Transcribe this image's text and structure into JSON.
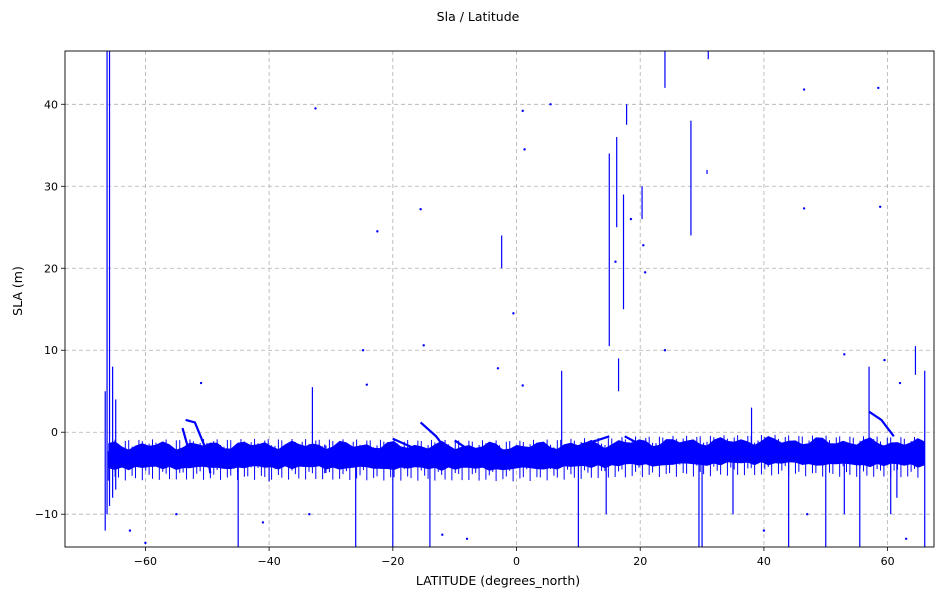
{
  "chart_data": {
    "type": "scatter",
    "title": "Sla / Latitude",
    "xlabel": "LATITUDE (degrees_north)",
    "ylabel": "SLA (m)",
    "xlim": [
      -73.0,
      67.5
    ],
    "ylim": [
      -14.0,
      46.5
    ],
    "xticks": [
      -60,
      -40,
      -20,
      0,
      20,
      40,
      60
    ],
    "yticks": [
      -10,
      0,
      10,
      20,
      30,
      40
    ],
    "grid": true,
    "color": "#0000ff",
    "band": {
      "x_range": [
        -66.0,
        66.0
      ],
      "center": [
        [
          -66,
          -2.9
        ],
        [
          -40,
          -2.8
        ],
        [
          0,
          -3.0
        ],
        [
          20,
          -2.5
        ],
        [
          40,
          -2.3
        ],
        [
          66,
          -2.6
        ]
      ],
      "halfwidth": 1.3
    },
    "segments": [
      {
        "x": -66.2,
        "y": [
          -10.0,
          46.5
        ]
      },
      {
        "x": -65.8,
        "y": [
          -9.0,
          46.5
        ]
      },
      {
        "x": -66.5,
        "y": [
          -12.0,
          5.0
        ]
      },
      {
        "x": -65.3,
        "y": [
          -8.0,
          8.0
        ]
      },
      {
        "x": -64.8,
        "y": [
          -7.0,
          4.0
        ]
      },
      {
        "x": -45.0,
        "y": [
          -14.0,
          -3.0
        ]
      },
      {
        "x": -40.0,
        "y": [
          -6.0,
          -2.0
        ]
      },
      {
        "x": -33.0,
        "y": [
          -2.0,
          5.5
        ]
      },
      {
        "x": -31.0,
        "y": [
          -5.0,
          -1.5
        ]
      },
      {
        "x": -26.0,
        "y": [
          -14.0,
          -3.0
        ]
      },
      {
        "x": -20.0,
        "y": [
          -14.0,
          -3.0
        ]
      },
      {
        "x": -14.0,
        "y": [
          -14.0,
          -3.0
        ]
      },
      {
        "x": -2.4,
        "y": [
          20.0,
          24.0
        ]
      },
      {
        "x": 7.3,
        "y": [
          -2.0,
          7.5
        ]
      },
      {
        "x": 10.0,
        "y": [
          -14.0,
          -3.0
        ]
      },
      {
        "x": 14.5,
        "y": [
          -10.0,
          -3.0
        ]
      },
      {
        "x": 15.0,
        "y": [
          10.5,
          34.0
        ]
      },
      {
        "x": 16.2,
        "y": [
          25.0,
          36.0
        ]
      },
      {
        "x": 16.5,
        "y": [
          5.0,
          9.0
        ]
      },
      {
        "x": 17.3,
        "y": [
          15.0,
          29.0
        ]
      },
      {
        "x": 17.8,
        "y": [
          37.5,
          40.0
        ]
      },
      {
        "x": 20.3,
        "y": [
          26.0,
          30.0
        ]
      },
      {
        "x": 24.0,
        "y": [
          42.0,
          46.5
        ]
      },
      {
        "x": 28.2,
        "y": [
          24.0,
          38.0
        ]
      },
      {
        "x": 29.5,
        "y": [
          -14.0,
          -3.0
        ]
      },
      {
        "x": 30.0,
        "y": [
          -14.0,
          -3.0
        ]
      },
      {
        "x": 30.8,
        "y": [
          31.5,
          32.0
        ]
      },
      {
        "x": 31.0,
        "y": [
          45.5,
          46.5
        ]
      },
      {
        "x": 35.0,
        "y": [
          -10.0,
          -3.0
        ]
      },
      {
        "x": 38.0,
        "y": [
          -2.0,
          3.0
        ]
      },
      {
        "x": 44.0,
        "y": [
          -14.0,
          -3.0
        ]
      },
      {
        "x": 50.0,
        "y": [
          -14.0,
          -3.0
        ]
      },
      {
        "x": 53.0,
        "y": [
          -10.0,
          -3.0
        ]
      },
      {
        "x": 55.5,
        "y": [
          -14.0,
          -3.0
        ]
      },
      {
        "x": 57.0,
        "y": [
          -2.0,
          8.0
        ]
      },
      {
        "x": 60.5,
        "y": [
          -10.0,
          -3.0
        ]
      },
      {
        "x": 61.5,
        "y": [
          -8.0,
          -3.0
        ]
      },
      {
        "x": 64.5,
        "y": [
          7.0,
          10.5
        ]
      },
      {
        "x": 66.0,
        "y": [
          -14.0,
          7.5
        ]
      }
    ],
    "points": [
      [
        -32.5,
        39.5
      ],
      [
        -22.5,
        24.5
      ],
      [
        -24.8,
        10.0
      ],
      [
        -24.2,
        5.8
      ],
      [
        -15.5,
        27.2
      ],
      [
        -15.0,
        10.6
      ],
      [
        -51.0,
        6.0
      ],
      [
        -3.0,
        7.8
      ],
      [
        -0.5,
        14.5
      ],
      [
        1.0,
        39.2
      ],
      [
        1.3,
        34.5
      ],
      [
        1.0,
        5.7
      ],
      [
        5.5,
        40.0
      ],
      [
        16.0,
        20.8
      ],
      [
        18.5,
        26.0
      ],
      [
        20.5,
        22.8
      ],
      [
        20.8,
        19.5
      ],
      [
        24.0,
        10.0
      ],
      [
        46.5,
        41.8
      ],
      [
        46.5,
        27.3
      ],
      [
        58.5,
        42.0
      ],
      [
        58.8,
        27.5
      ],
      [
        59.5,
        8.8
      ],
      [
        62.0,
        6.0
      ],
      [
        53.0,
        9.5
      ],
      [
        -41.0,
        -11.0
      ],
      [
        -33.5,
        -10.0
      ],
      [
        -12.0,
        -12.5
      ],
      [
        -8.0,
        -13.0
      ],
      [
        -55.0,
        -10.0
      ],
      [
        -60.0,
        -13.5
      ],
      [
        -62.5,
        -12.0
      ],
      [
        40.0,
        -12.0
      ],
      [
        47.0,
        -10.0
      ],
      [
        63.0,
        -13.0
      ]
    ],
    "arcs": [
      [
        [
          -53.5,
          1.5
        ],
        [
          -52.0,
          1.2
        ],
        [
          -50.0,
          -2.5
        ],
        [
          -49.5,
          -5.0
        ]
      ],
      [
        [
          -54.0,
          0.5
        ],
        [
          -52.5,
          -3.5
        ]
      ],
      [
        [
          -15.5,
          1.2
        ],
        [
          -13.0,
          -0.5
        ],
        [
          -11.0,
          -2.5
        ]
      ],
      [
        [
          -10.0,
          -1.0
        ],
        [
          -7.0,
          -2.5
        ],
        [
          -5.0,
          -3.5
        ]
      ],
      [
        [
          -20.0,
          -0.8
        ],
        [
          -17.0,
          -1.8
        ]
      ],
      [
        [
          10.5,
          -1.5
        ],
        [
          13.0,
          -1.0
        ],
        [
          15.0,
          -0.5
        ]
      ],
      [
        [
          17.5,
          -0.5
        ],
        [
          20.0,
          -1.5
        ]
      ],
      [
        [
          57.0,
          2.5
        ],
        [
          59.0,
          1.5
        ],
        [
          61.0,
          -0.5
        ]
      ]
    ]
  }
}
